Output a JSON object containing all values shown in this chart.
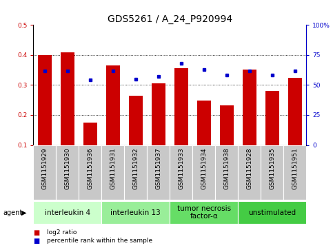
{
  "title": "GDS5261 / A_24_P920994",
  "samples": [
    "GSM1151929",
    "GSM1151930",
    "GSM1151936",
    "GSM1151931",
    "GSM1151932",
    "GSM1151937",
    "GSM1151933",
    "GSM1151934",
    "GSM1151938",
    "GSM1151928",
    "GSM1151935",
    "GSM1151951"
  ],
  "log2_ratio": [
    0.4,
    0.41,
    0.175,
    0.365,
    0.265,
    0.305,
    0.355,
    0.248,
    0.232,
    0.352,
    0.28,
    0.325
  ],
  "percentile_rank": [
    62,
    62,
    54,
    62,
    55,
    57,
    68,
    63,
    58,
    62,
    58,
    62
  ],
  "bar_color": "#cc0000",
  "dot_color": "#0000cc",
  "ylim_left": [
    0.1,
    0.5
  ],
  "ylim_right": [
    0,
    100
  ],
  "yticks_left": [
    0.1,
    0.2,
    0.3,
    0.4,
    0.5
  ],
  "yticks_right": [
    0,
    25,
    50,
    75,
    100
  ],
  "ytick_labels_right": [
    "0",
    "25",
    "50",
    "75",
    "100%"
  ],
  "groups": [
    {
      "label": "interleukin 4",
      "start": 0,
      "end": 3,
      "color": "#ccffcc"
    },
    {
      "label": "interleukin 13",
      "start": 3,
      "end": 6,
      "color": "#99ee99"
    },
    {
      "label": "tumor necrosis\nfactor-α",
      "start": 6,
      "end": 9,
      "color": "#66dd66"
    },
    {
      "label": "unstimulated",
      "start": 9,
      "end": 12,
      "color": "#44cc44"
    }
  ],
  "agent_label": "agent",
  "legend_red": "log2 ratio",
  "legend_blue": "percentile rank within the sample",
  "bar_color_r": "#cc0000",
  "dot_color_b": "#0000cc",
  "xtick_bg": "#c8c8c8",
  "title_fontsize": 10,
  "tick_fontsize": 6.5,
  "label_fontsize": 7,
  "group_fontsize": 7.5
}
